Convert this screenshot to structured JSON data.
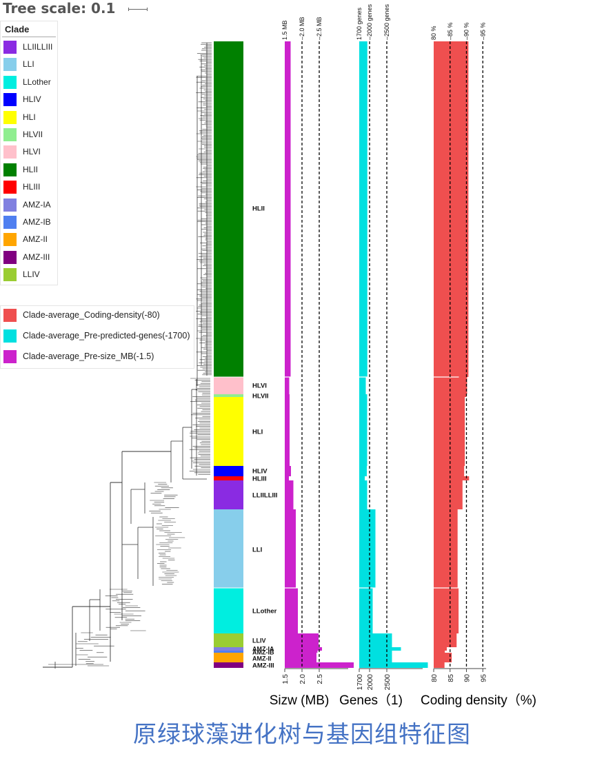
{
  "header": {
    "tree_scale_label": "Tree scale: 0.1"
  },
  "legend_clade": {
    "title": "Clade",
    "items": [
      {
        "label": "LLIILLIII",
        "color": "#8a2be2"
      },
      {
        "label": "LLI",
        "color": "#87ceeb"
      },
      {
        "label": "LLother",
        "color": "#00eee0"
      },
      {
        "label": "HLIV",
        "color": "#0000ff"
      },
      {
        "label": "HLI",
        "color": "#ffff00"
      },
      {
        "label": "HLVII",
        "color": "#90ee90"
      },
      {
        "label": "HLVI",
        "color": "#ffc0cb"
      },
      {
        "label": "HLII",
        "color": "#008000"
      },
      {
        "label": "HLIII",
        "color": "#ff0000"
      },
      {
        "label": "AMZ-IA",
        "color": "#8080e0"
      },
      {
        "label": "AMZ-IB",
        "color": "#4f7ff0"
      },
      {
        "label": "AMZ-II",
        "color": "#ffa500"
      },
      {
        "label": "AMZ-III",
        "color": "#800080"
      },
      {
        "label": "LLIV",
        "color": "#9acd32"
      }
    ]
  },
  "legend_datasets": {
    "items": [
      {
        "label": "Clade-average_Coding-density(-80)",
        "color": "#ef4f4f"
      },
      {
        "label": "Clade-average_Pre-predicted-genes(-1700)",
        "color": "#00e0e0"
      },
      {
        "label": "Clade-average_Pre-size_MB(-1.5)",
        "color": "#cc22cc"
      }
    ]
  },
  "chart_data": {
    "type": "bar",
    "categories": [
      "HLII",
      "HLVI",
      "HLVII",
      "HLI",
      "HLIV",
      "HLIII",
      "LLIILLIII",
      "LLI",
      "LLother",
      "LLIV",
      "AMZ-IA",
      "AMZ-IB",
      "AMZ-II",
      "AMZ-III"
    ],
    "clade_colors": [
      "#008000",
      "#ffc0cb",
      "#90ee90",
      "#ffff00",
      "#0000ff",
      "#ff0000",
      "#8a2be2",
      "#87ceeb",
      "#00eee0",
      "#9acd32",
      "#8080e0",
      "#4f7ff0",
      "#ffa500",
      "#800080"
    ],
    "series": [
      {
        "name": "Clade-average_Pre-size_MB(-1.5)",
        "color": "#cc22cc",
        "values": [
          1.67,
          1.63,
          1.64,
          1.64,
          1.68,
          1.62,
          1.75,
          1.82,
          1.88,
          2.48,
          2.58,
          2.45,
          2.42,
          3.5
        ],
        "xlim": [
          1.5,
          3.5
        ],
        "top_ticks": [
          "1.5 MB",
          "2.0 MB",
          "2.5 MB"
        ],
        "top_tick_values": [
          1.5,
          2.0,
          2.5
        ],
        "bottom_ticks": [
          "1.5",
          "2.0",
          "2.5"
        ],
        "xlabel": "Sizw (MB)"
      },
      {
        "name": "Clade-average_Pre-predicted-genes(-1700)",
        "color": "#00e0e0",
        "values": [
          1935,
          1890,
          1930,
          1930,
          1920,
          1860,
          1930,
          2170,
          2090,
          2650,
          2910,
          2650,
          2650,
          3690
        ],
        "xlim": [
          1700,
          3700
        ],
        "top_ticks": [
          "1700 genes",
          "2000 genes",
          "2500 genes"
        ],
        "top_tick_values": [
          1700,
          2000,
          2500
        ],
        "bottom_ticks": [
          "1700",
          "2000",
          "2500"
        ],
        "xlabel": "Genes（1)"
      },
      {
        "name": "Clade-average_Coding-density(-80)",
        "color": "#ef4f4f",
        "values": [
          90.6,
          90.2,
          90.0,
          89.5,
          89.3,
          90.8,
          88.8,
          87.3,
          87.6,
          87.0,
          84.0,
          83.4,
          85.5,
          83.3
        ],
        "xlim": [
          80,
          96
        ],
        "top_ticks": [
          "80 %",
          "85 %",
          "90 %",
          "95 %"
        ],
        "top_tick_values": [
          80,
          85,
          90,
          95
        ],
        "bottom_ticks": [
          "80",
          "85",
          "90",
          "95"
        ],
        "xlabel": "Coding density（%)"
      }
    ]
  },
  "caption": "原绿球藻进化树与基因组特征图"
}
